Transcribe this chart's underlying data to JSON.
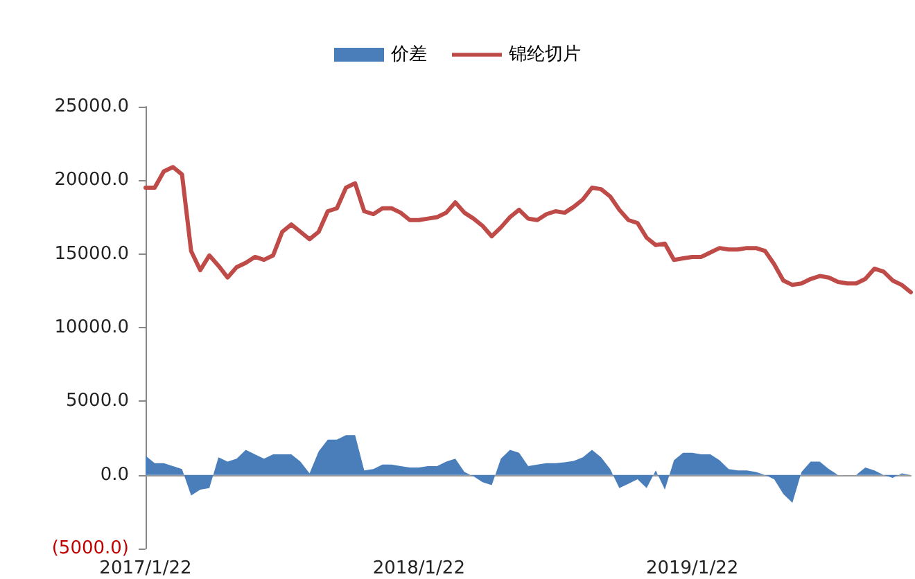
{
  "chart_data": {
    "type": "line",
    "categories": [
      "2017/1/22",
      null,
      null,
      null,
      null,
      null,
      null,
      null,
      null,
      null,
      null,
      null,
      null,
      null,
      null,
      null,
      null,
      null,
      null,
      null,
      null,
      null,
      null,
      null,
      null,
      null,
      null,
      null,
      null,
      null,
      "2018/1/22",
      null,
      null,
      null,
      null,
      null,
      null,
      null,
      null,
      null,
      null,
      null,
      null,
      null,
      null,
      null,
      null,
      null,
      null,
      null,
      null,
      null,
      null,
      null,
      null,
      null,
      null,
      null,
      null,
      null,
      "2019/1/22",
      null,
      null,
      null,
      null,
      null,
      null,
      null,
      null,
      null,
      null,
      null,
      null,
      null,
      null,
      null,
      null,
      null,
      null,
      null,
      null,
      null,
      null,
      null,
      null
    ],
    "series": [
      {
        "name": "价差",
        "type": "area",
        "color": "#4a7ebb",
        "values": [
          1300,
          800,
          800,
          600,
          400,
          -1400,
          -1000,
          -900,
          1200,
          900,
          1100,
          1700,
          1400,
          1100,
          1400,
          1400,
          1400,
          900,
          100,
          1600,
          2400,
          2400,
          2700,
          2700,
          300,
          400,
          700,
          700,
          600,
          500,
          500,
          600,
          600,
          900,
          1100,
          200,
          -100,
          -500,
          -700,
          1100,
          1700,
          1500,
          600,
          700,
          800,
          800,
          850,
          950,
          1200,
          1700,
          1200,
          400,
          -900,
          -600,
          -300,
          -900,
          300,
          -1000,
          1000,
          1500,
          1500,
          1400,
          1400,
          1000,
          400,
          300,
          300,
          200,
          0,
          -300,
          -1300,
          -1900,
          200,
          900,
          900,
          400,
          0,
          0,
          0,
          500,
          300,
          0,
          -200,
          100,
          0
        ]
      },
      {
        "name": "锦纶切片",
        "color": "#be4b48",
        "values": [
          19500,
          19500,
          20600,
          20900,
          20400,
          15200,
          13900,
          14900,
          14200,
          13400,
          14100,
          14400,
          14800,
          14600,
          14900,
          16500,
          17000,
          16500,
          16000,
          16500,
          17900,
          18100,
          19500,
          19800,
          17900,
          17700,
          18100,
          18100,
          17800,
          17300,
          17300,
          17400,
          17500,
          17800,
          18500,
          17800,
          17400,
          16900,
          16200,
          16800,
          17500,
          18000,
          17400,
          17300,
          17700,
          17900,
          17800,
          18200,
          18700,
          19500,
          19400,
          18900,
          18000,
          17300,
          17100,
          16100,
          15600,
          15700,
          14600,
          14700,
          14800,
          14800,
          15100,
          15400,
          15300,
          15300,
          15400,
          15400,
          15200,
          14300,
          13200,
          12900,
          13000,
          13300,
          13500,
          13400,
          13100,
          13000,
          13000,
          13300,
          14000,
          13800,
          13200,
          12900,
          12400
        ]
      }
    ],
    "ylim": [
      -5000,
      25000
    ],
    "yticks": [
      {
        "value": -5000,
        "label": "(5000.0)"
      },
      {
        "value": 0,
        "label": "0.0"
      },
      {
        "value": 5000,
        "label": "5000.0"
      },
      {
        "value": 10000,
        "label": "10000.0"
      },
      {
        "value": 15000,
        "label": "15000.0"
      },
      {
        "value": 20000,
        "label": "20000.0"
      },
      {
        "value": 25000,
        "label": "25000.0"
      }
    ],
    "legend": "top",
    "marker": "none",
    "line_style": "solid"
  }
}
